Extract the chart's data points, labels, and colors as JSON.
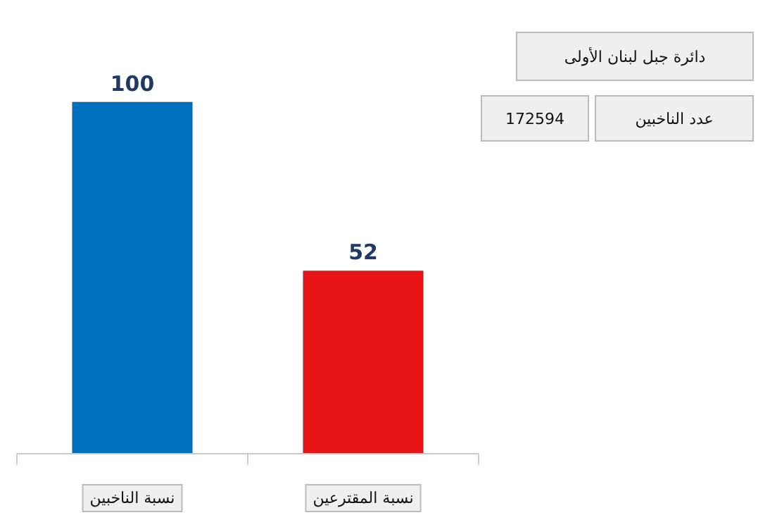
{
  "chart_data": {
    "type": "bar",
    "categories": [
      "نسبة الناخبين",
      "نسبة المقترعين"
    ],
    "values": [
      100,
      52
    ],
    "colors": [
      "#0070c0",
      "#e81416"
    ],
    "data_labels": true,
    "annotations": [
      "دائرة جبل لبنان الأولى",
      "عدد الناخبين",
      "172594"
    ]
  }
}
